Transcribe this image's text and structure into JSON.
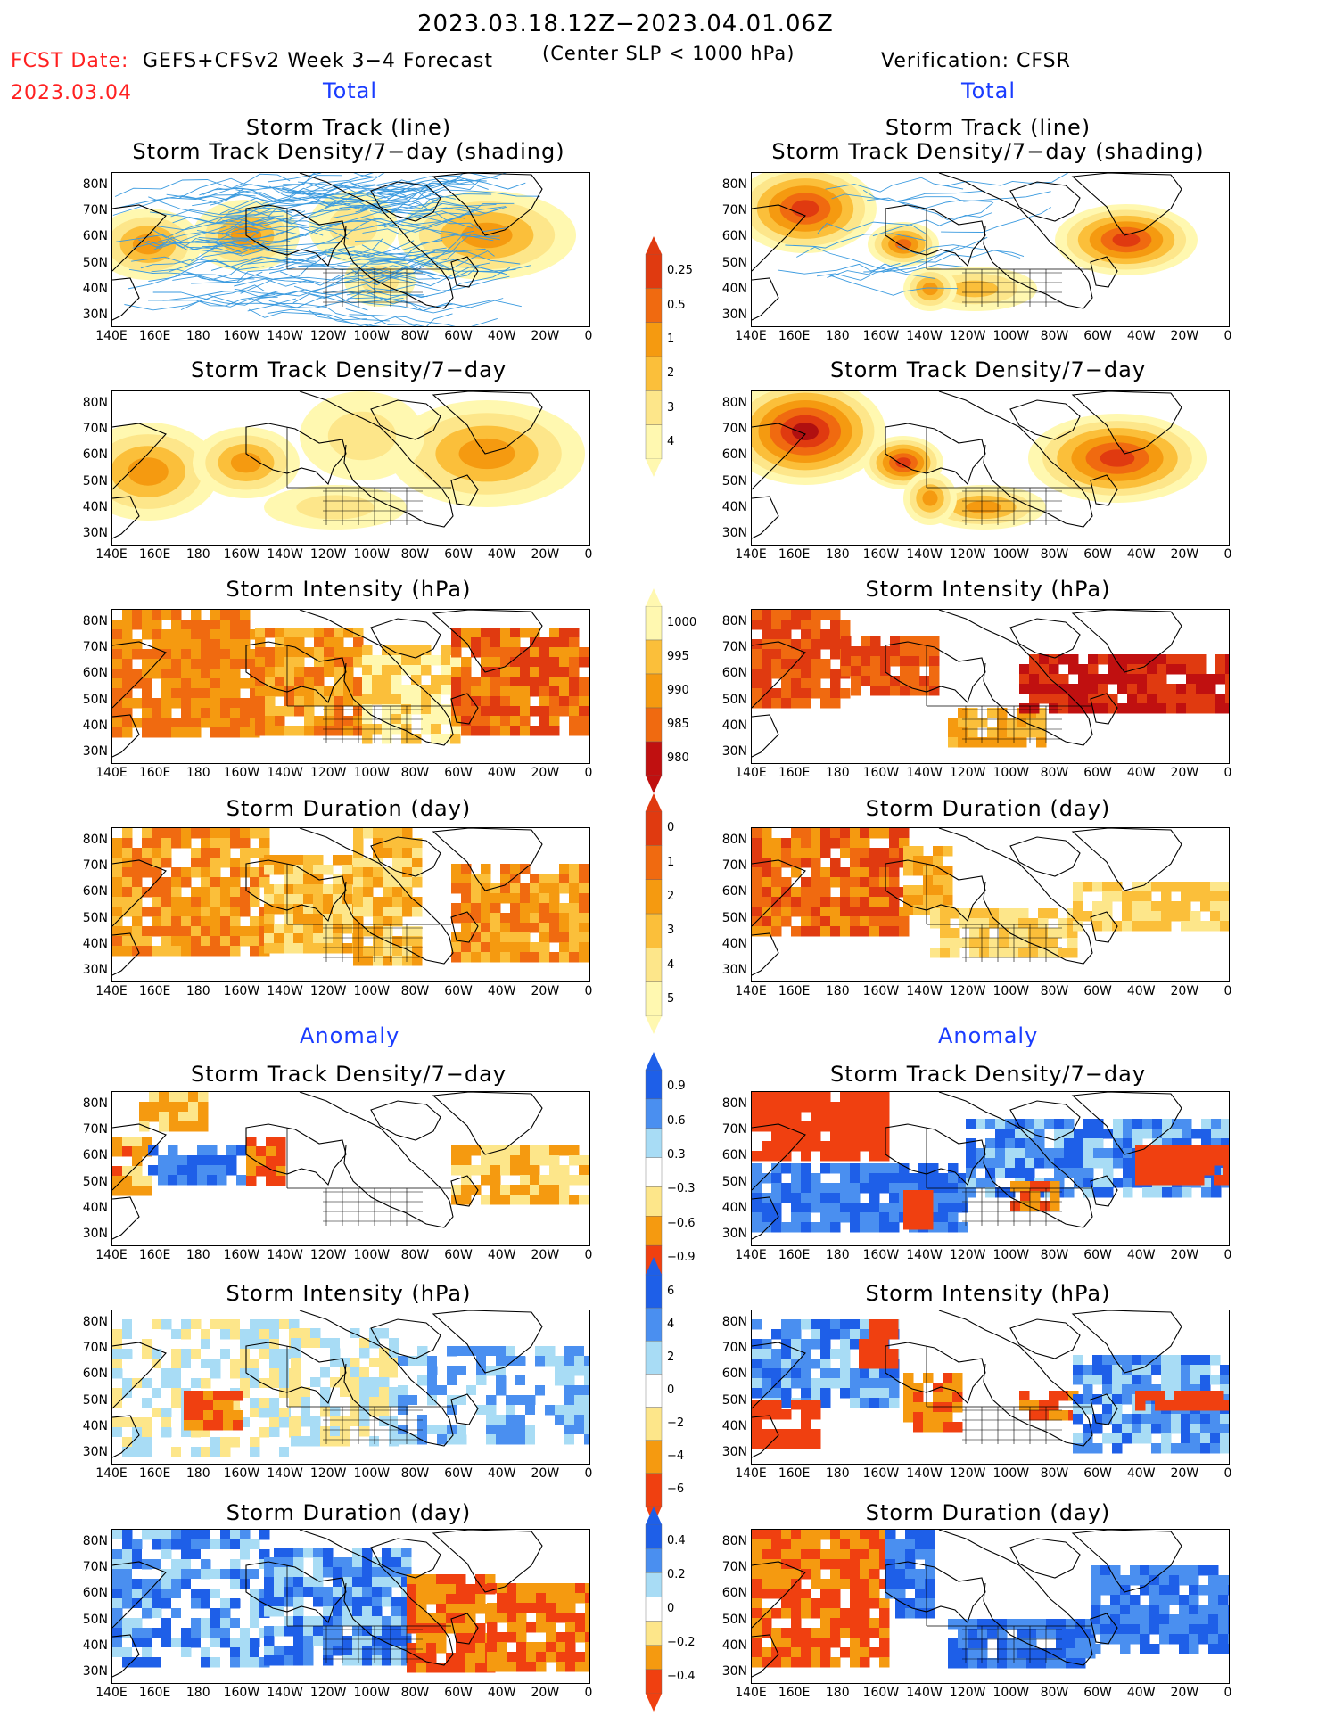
{
  "header": {
    "period": "2023.03.18.12Z−2023.04.01.06Z",
    "fcst_label": "FCST Date:",
    "fcst_date": "2023.03.04",
    "model": "GEFS+CFSv2 Week 3−4 Forecast",
    "criterion": "(Center SLP < 1000 hPa)",
    "verification": "Verification: CFSR"
  },
  "section_labels": {
    "total": "Total",
    "anomaly": "Anomaly"
  },
  "panel_titles": {
    "track_line": "Storm Track (line)",
    "track_shading": "Storm Track Density/7−day (shading)",
    "density": "Storm Track Density/7−day",
    "intensity": "Storm Intensity (hPa)",
    "duration": "Storm Duration (day)"
  },
  "axes": {
    "lat_ticks": [
      "80N",
      "70N",
      "60N",
      "50N",
      "40N",
      "30N"
    ],
    "lon_ticks": [
      "140E",
      "160E",
      "180",
      "160W",
      "140W",
      "120W",
      "100W",
      "80W",
      "60W",
      "40W",
      "20W",
      "0"
    ]
  },
  "colorbars": {
    "density_total": [
      "0.25",
      "0.5",
      "1",
      "2",
      "3",
      "4"
    ],
    "intensity_total": [
      "1000",
      "995",
      "990",
      "985",
      "980"
    ],
    "duration_total": [
      "0",
      "1",
      "2",
      "3",
      "4",
      "5"
    ],
    "density_anom": [
      "0.9",
      "0.6",
      "0.3",
      "−0.3",
      "−0.6",
      "−0.9"
    ],
    "intensity_anom": [
      "6",
      "4",
      "2",
      "0",
      "−2",
      "−4",
      "−6"
    ],
    "duration_anom": [
      "0.4",
      "0.2",
      "0",
      "−0.2",
      "−0.4"
    ]
  },
  "colors": {
    "total_scale": [
      "#fff8b0",
      "#fde68a",
      "#fbbf3a",
      "#f59a10",
      "#f06a10",
      "#e03a10",
      "#b01010"
    ],
    "anomaly_scale": [
      "#1e5fe8",
      "#4a8ff0",
      "#a8dcf5",
      "#ffffff",
      "#fde68a",
      "#f59a10",
      "#f04010"
    ],
    "track_line": "#3a9adf"
  }
}
